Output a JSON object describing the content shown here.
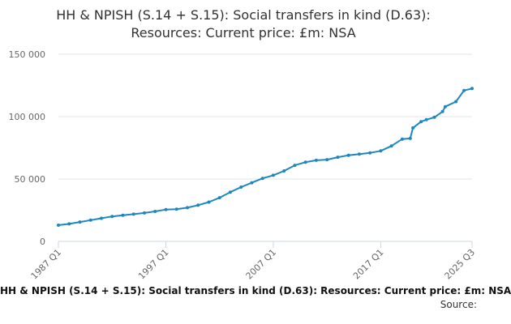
{
  "title_lines": [
    "HH & NPISH (S.14 + S.15): Social transfers in kind (D.63):",
    "Resources: Current price: £m: NSA"
  ],
  "caption": "HH & NPISH (S.14 + S.15): Social transfers in kind (D.63): Resources: Current price: £m: NSA",
  "source_label": "Source:",
  "colors": {
    "series": "#1f87c0",
    "grid": "#e6e6e6",
    "axis": "#ccd6eb",
    "tick_text": "#666666"
  },
  "chart_data": {
    "type": "line",
    "title": "HH & NPISH (S.14 + S.15): Social transfers in kind (D.63): Resources: Current price: £m: NSA",
    "xlabel": "",
    "ylabel": "",
    "x_range": [
      "1987 Q1",
      "2025 Q3"
    ],
    "ylim": [
      0,
      150000
    ],
    "y_ticks": [
      {
        "value": 0,
        "label": "0"
      },
      {
        "value": 50000,
        "label": "50 000"
      },
      {
        "value": 100000,
        "label": "100 000"
      },
      {
        "value": 150000,
        "label": "150 000"
      }
    ],
    "x_tick_labels": [
      "1987 Q1",
      "1997 Q1",
      "2007 Q1",
      "2017 Q1",
      "2025 Q3"
    ],
    "grid": true,
    "series": [
      {
        "points": [
          [
            "1987 Q1",
            13000
          ],
          [
            "1988 Q1",
            14000
          ],
          [
            "1989 Q1",
            15500
          ],
          [
            "1990 Q1",
            17000
          ],
          [
            "1991 Q1",
            18500
          ],
          [
            "1992 Q1",
            20000
          ],
          [
            "1993 Q1",
            21000
          ],
          [
            "1994 Q1",
            21800
          ],
          [
            "1995 Q1",
            22800
          ],
          [
            "1996 Q1",
            24000
          ],
          [
            "1997 Q1",
            25500
          ],
          [
            "1998 Q1",
            25800
          ],
          [
            "1999 Q1",
            27000
          ],
          [
            "2000 Q1",
            29000
          ],
          [
            "2001 Q1",
            31500
          ],
          [
            "2002 Q1",
            35000
          ],
          [
            "2003 Q1",
            39500
          ],
          [
            "2004 Q1",
            43500
          ],
          [
            "2005 Q1",
            47000
          ],
          [
            "2006 Q1",
            50500
          ],
          [
            "2007 Q1",
            53000
          ],
          [
            "2008 Q1",
            56500
          ],
          [
            "2009 Q1",
            61000
          ],
          [
            "2010 Q1",
            63500
          ],
          [
            "2011 Q1",
            65000
          ],
          [
            "2012 Q1",
            65500
          ],
          [
            "2013 Q1",
            67500
          ],
          [
            "2014 Q1",
            69000
          ],
          [
            "2015 Q1",
            70000
          ],
          [
            "2016 Q1",
            71000
          ],
          [
            "2017 Q1",
            72500
          ],
          [
            "2018 Q1",
            76500
          ],
          [
            "2019 Q1",
            82000
          ],
          [
            "2019 Q4",
            82500
          ],
          [
            "2020 Q1",
            91000
          ],
          [
            "2020 Q4",
            96000
          ],
          [
            "2021 Q2",
            97500
          ],
          [
            "2022 Q1",
            99500
          ],
          [
            "2022 Q4",
            104000
          ],
          [
            "2023 Q1",
            108000
          ],
          [
            "2024 Q1",
            112000
          ],
          [
            "2024 Q4",
            121000
          ],
          [
            "2025 Q3",
            122500
          ]
        ]
      }
    ]
  }
}
